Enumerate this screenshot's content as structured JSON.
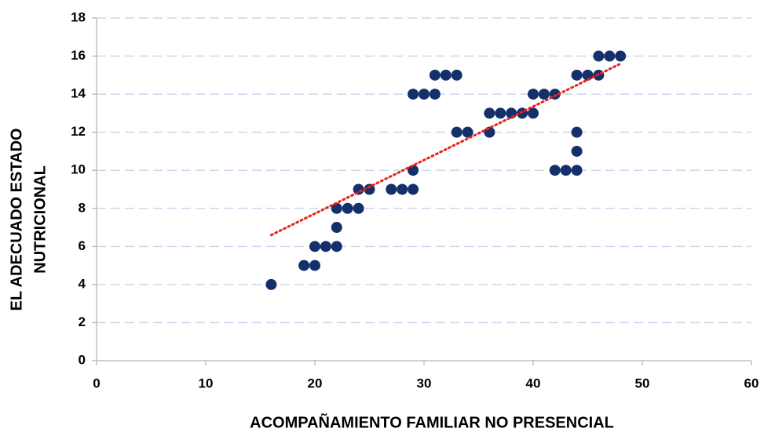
{
  "chart_data": {
    "type": "scatter",
    "xlabel": "ACOMPAÑAMIENTO FAMILIAR NO PRESENCIAL",
    "ylabel": [
      "EL ADECUADO ESTADO",
      "NUTRICIONAL"
    ],
    "x": [
      16,
      19,
      20,
      20,
      21,
      22,
      22,
      22,
      23,
      24,
      24,
      25,
      27,
      28,
      29,
      29,
      29,
      30,
      31,
      31,
      32,
      33,
      33,
      34,
      36,
      36,
      37,
      38,
      39,
      40,
      40,
      41,
      42,
      42,
      43,
      44,
      44,
      44,
      44,
      45,
      46,
      46,
      47,
      48
    ],
    "values": [
      4,
      5,
      5,
      6,
      6,
      6,
      7,
      8,
      8,
      8,
      9,
      9,
      9,
      9,
      9,
      10,
      14,
      14,
      14,
      15,
      15,
      15,
      12,
      12,
      12,
      13,
      13,
      13,
      13,
      13,
      14,
      14,
      14,
      10,
      10,
      10,
      11,
      12,
      15,
      15,
      15,
      16,
      16,
      16
    ],
    "color": "#13306b",
    "trendline": {
      "x": [
        16,
        48
      ],
      "values": [
        6.6,
        15.6
      ],
      "color": "#e8231c"
    },
    "xlim": [
      0,
      60
    ],
    "xticks": [
      0,
      10,
      20,
      30,
      40,
      50,
      60
    ],
    "ylim": [
      0,
      18
    ],
    "yticks": [
      0,
      2,
      4,
      6,
      8,
      10,
      12,
      14,
      16,
      18
    ],
    "grid": true
  }
}
